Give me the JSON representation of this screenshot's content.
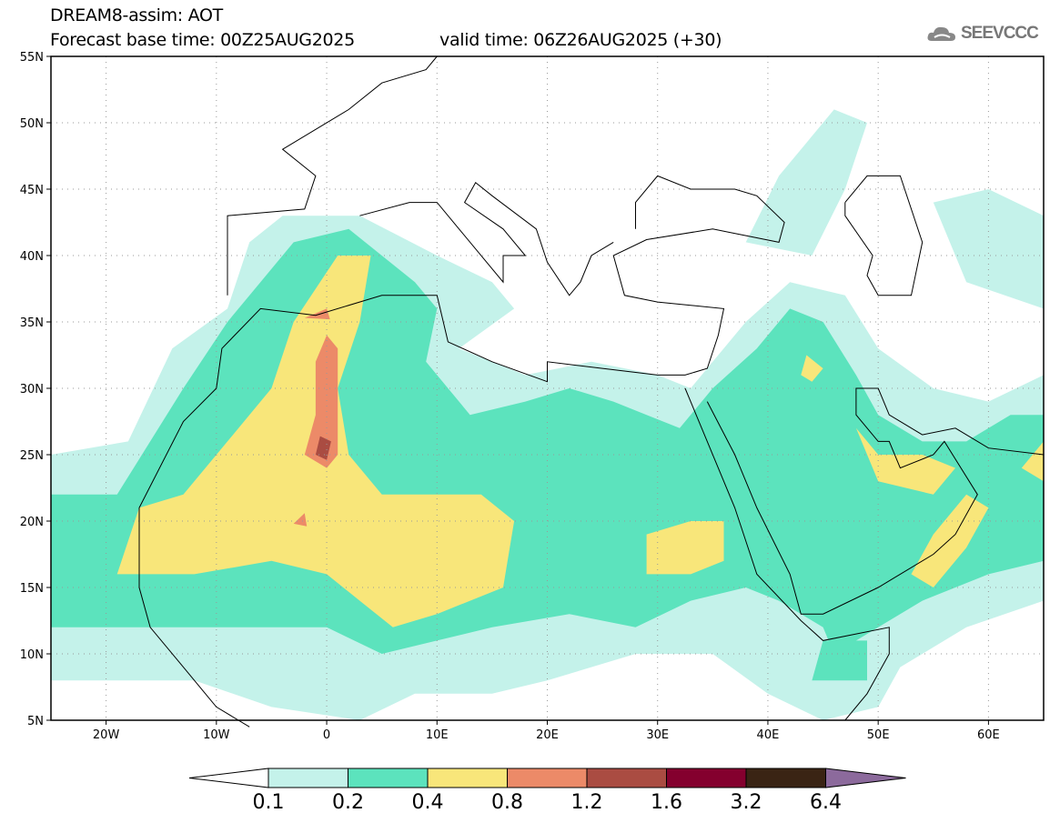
{
  "header": {
    "title": "DREAM8-assim: AOT",
    "base_time": "Forecast base time: 00Z25AUG2025",
    "valid_time": "valid time: 06Z26AUG2025 (+30)",
    "logo_text": "SEEVCCC"
  },
  "map": {
    "lon_range": [
      -25,
      65
    ],
    "lat_range": [
      5,
      55
    ],
    "lat_labels": [
      "5N",
      "10N",
      "15N",
      "20N",
      "25N",
      "30N",
      "35N",
      "40N",
      "45N",
      "50N",
      "55N"
    ],
    "lon_labels": [
      "20W",
      "10W",
      "0",
      "10E",
      "20E",
      "30E",
      "40E",
      "50E",
      "60E"
    ]
  },
  "colorbar": {
    "labels": [
      "0.1",
      "0.2",
      "0.4",
      "0.8",
      "1.2",
      "1.6",
      "3.2",
      "6.4"
    ],
    "colors": [
      "#ffffff",
      "#c4f2ea",
      "#5ce3bd",
      "#f8e67a",
      "#ec8a68",
      "#aa4c42",
      "#84002e",
      "#3a2414",
      "#8c6a9c"
    ]
  }
}
